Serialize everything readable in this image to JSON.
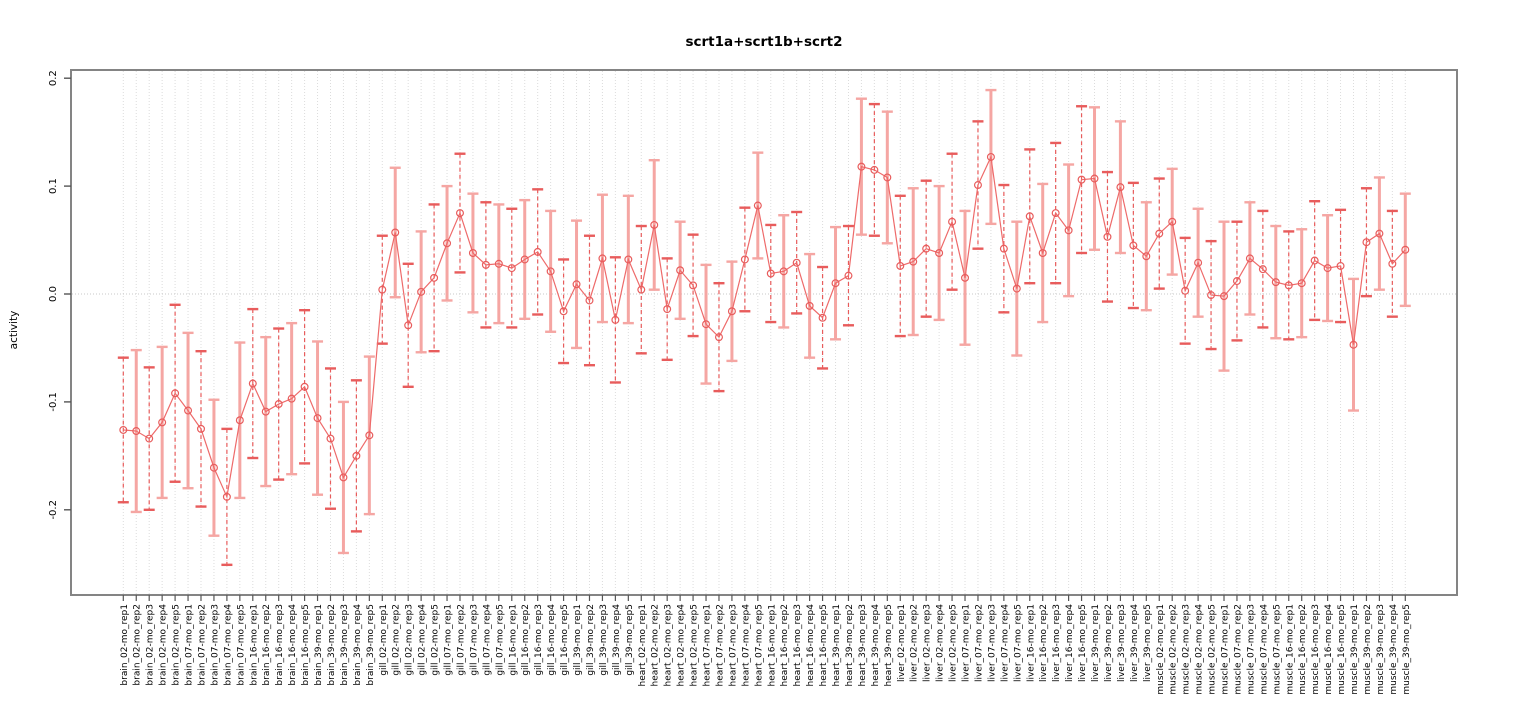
{
  "chart_data": {
    "type": "line",
    "title": "scrt1a+scrt1b+scrt2",
    "ylabel": "activity",
    "xlabel": "",
    "yticks": [
      -0.2,
      -0.1,
      0.0,
      0.1,
      0.2
    ],
    "ylim": [
      -0.28,
      0.208
    ],
    "grid": "dotted vertical gridline per category, dotted horizontal line at y=0",
    "legend": "none",
    "marker": "open-circle",
    "error_bars": true,
    "colors": {
      "point_and_line": "#e85c5c",
      "errorbar_dashed": "#e85c5c",
      "errorbar_solid_pale": "#f5a6a3",
      "plot_border": "#848484",
      "gridline": "#dcdcdc",
      "tick_text": "#000000"
    },
    "categories": [
      "brain_02-mo_rep1",
      "brain_02-mo_rep2",
      "brain_02-mo_rep3",
      "brain_02-mo_rep4",
      "brain_02-mo_rep5",
      "brain_07-mo_rep1",
      "brain_07-mo_rep2",
      "brain_07-mo_rep3",
      "brain_07-mo_rep4",
      "brain_07-mo_rep5",
      "brain_16-mo_rep1",
      "brain_16-mo_rep2",
      "brain_16-mo_rep3",
      "brain_16-mo_rep4",
      "brain_16-mo_rep5",
      "brain_39-mo_rep1",
      "brain_39-mo_rep2",
      "brain_39-mo_rep3",
      "brain_39-mo_rep4",
      "brain_39-mo_rep5",
      "gill_02-mo_rep1",
      "gill_02-mo_rep2",
      "gill_02-mo_rep3",
      "gill_02-mo_rep4",
      "gill_02-mo_rep5",
      "gill_07-mo_rep1",
      "gill_07-mo_rep2",
      "gill_07-mo_rep3",
      "gill_07-mo_rep4",
      "gill_07-mo_rep5",
      "gill_16-mo_rep1",
      "gill_16-mo_rep2",
      "gill_16-mo_rep3",
      "gill_16-mo_rep4",
      "gill_16-mo_rep5",
      "gill_39-mo_rep1",
      "gill_39-mo_rep2",
      "gill_39-mo_rep3",
      "gill_39-mo_rep4",
      "gill_39-mo_rep5",
      "heart_02-mo_rep1",
      "heart_02-mo_rep2",
      "heart_02-mo_rep3",
      "heart_02-mo_rep4",
      "heart_02-mo_rep5",
      "heart_07-mo_rep1",
      "heart_07-mo_rep2",
      "heart_07-mo_rep3",
      "heart_07-mo_rep4",
      "heart_07-mo_rep5",
      "heart_16-mo_rep1",
      "heart_16-mo_rep2",
      "heart_16-mo_rep3",
      "heart_16-mo_rep4",
      "heart_16-mo_rep5",
      "heart_39-mo_rep1",
      "heart_39-mo_rep2",
      "heart_39-mo_rep3",
      "heart_39-mo_rep4",
      "heart_39-mo_rep5",
      "liver_02-mo_rep1",
      "liver_02-mo_rep2",
      "liver_02-mo_rep3",
      "liver_02-mo_rep4",
      "liver_02-mo_rep5",
      "liver_07-mo_rep1",
      "liver_07-mo_rep2",
      "liver_07-mo_rep3",
      "liver_07-mo_rep4",
      "liver_07-mo_rep5",
      "liver_16-mo_rep1",
      "liver_16-mo_rep2",
      "liver_16-mo_rep3",
      "liver_16-mo_rep4",
      "liver_16-mo_rep5",
      "liver_39-mo_rep1",
      "liver_39-mo_rep2",
      "liver_39-mo_rep3",
      "liver_39-mo_rep4",
      "liver_39-mo_rep5",
      "muscle_02-mo_rep1",
      "muscle_02-mo_rep2",
      "muscle_02-mo_rep3",
      "muscle_02-mo_rep4",
      "muscle_02-mo_rep5",
      "muscle_07-mo_rep1",
      "muscle_07-mo_rep2",
      "muscle_07-mo_rep3",
      "muscle_07-mo_rep4",
      "muscle_07-mo_rep5",
      "muscle_16-mo_rep1",
      "muscle_16-mo_rep2",
      "muscle_16-mo_rep3",
      "muscle_16-mo_rep4",
      "muscle_16-mo_rep5",
      "muscle_39-mo_rep1",
      "muscle_39-mo_rep2",
      "muscle_39-mo_rep3",
      "muscle_39-mo_rep4",
      "muscle_39-mo_rep5"
    ],
    "values": [
      -0.126,
      -0.127,
      -0.134,
      -0.119,
      -0.092,
      -0.108,
      -0.125,
      -0.161,
      -0.188,
      -0.117,
      -0.083,
      -0.109,
      -0.102,
      -0.097,
      -0.086,
      -0.115,
      -0.134,
      -0.17,
      -0.15,
      -0.131,
      0.004,
      0.057,
      -0.029,
      0.002,
      0.015,
      0.047,
      0.075,
      0.038,
      0.027,
      0.028,
      0.024,
      0.032,
      0.039,
      0.021,
      -0.016,
      0.009,
      -0.006,
      0.033,
      -0.024,
      0.032,
      0.004,
      0.064,
      -0.014,
      0.022,
      0.008,
      -0.028,
      -0.04,
      -0.016,
      0.032,
      0.082,
      0.019,
      0.021,
      0.029,
      -0.011,
      -0.022,
      0.01,
      0.017,
      0.118,
      0.115,
      0.108,
      0.026,
      0.03,
      0.042,
      0.038,
      0.067,
      0.015,
      0.101,
      0.127,
      0.042,
      0.005,
      0.072,
      0.038,
      0.075,
      0.059,
      0.106,
      0.107,
      0.053,
      0.099,
      0.045,
      0.035,
      0.056,
      0.067,
      0.003,
      0.029,
      -0.001,
      -0.002,
      0.012,
      0.033,
      0.023,
      0.011,
      0.008,
      0.01,
      0.031,
      0.024,
      0.026,
      -0.047,
      0.048,
      0.056,
      0.028,
      0.041
    ],
    "errors": [
      0.067,
      0.075,
      0.066,
      0.07,
      0.082,
      0.072,
      0.072,
      0.063,
      0.063,
      0.072,
      0.069,
      0.069,
      0.07,
      0.07,
      0.071,
      0.071,
      0.065,
      0.07,
      0.07,
      0.073,
      0.05,
      0.06,
      0.057,
      0.056,
      0.068,
      0.053,
      0.055,
      0.055,
      0.058,
      0.055,
      0.055,
      0.055,
      0.058,
      0.056,
      0.048,
      0.059,
      0.06,
      0.059,
      0.058,
      0.059,
      0.059,
      0.06,
      0.047,
      0.045,
      0.047,
      0.055,
      0.05,
      0.046,
      0.048,
      0.049,
      0.045,
      0.052,
      0.047,
      0.048,
      0.047,
      0.052,
      0.046,
      0.063,
      0.061,
      0.061,
      0.065,
      0.068,
      0.063,
      0.062,
      0.063,
      0.062,
      0.059,
      0.062,
      0.059,
      0.062,
      0.062,
      0.064,
      0.065,
      0.061,
      0.068,
      0.066,
      0.06,
      0.061,
      0.058,
      0.05,
      0.051,
      0.049,
      0.049,
      0.05,
      0.05,
      0.069,
      0.055,
      0.052,
      0.054,
      0.052,
      0.05,
      0.05,
      0.055,
      0.049,
      0.052,
      0.061,
      0.05,
      0.052,
      0.049,
      0.052
    ]
  }
}
